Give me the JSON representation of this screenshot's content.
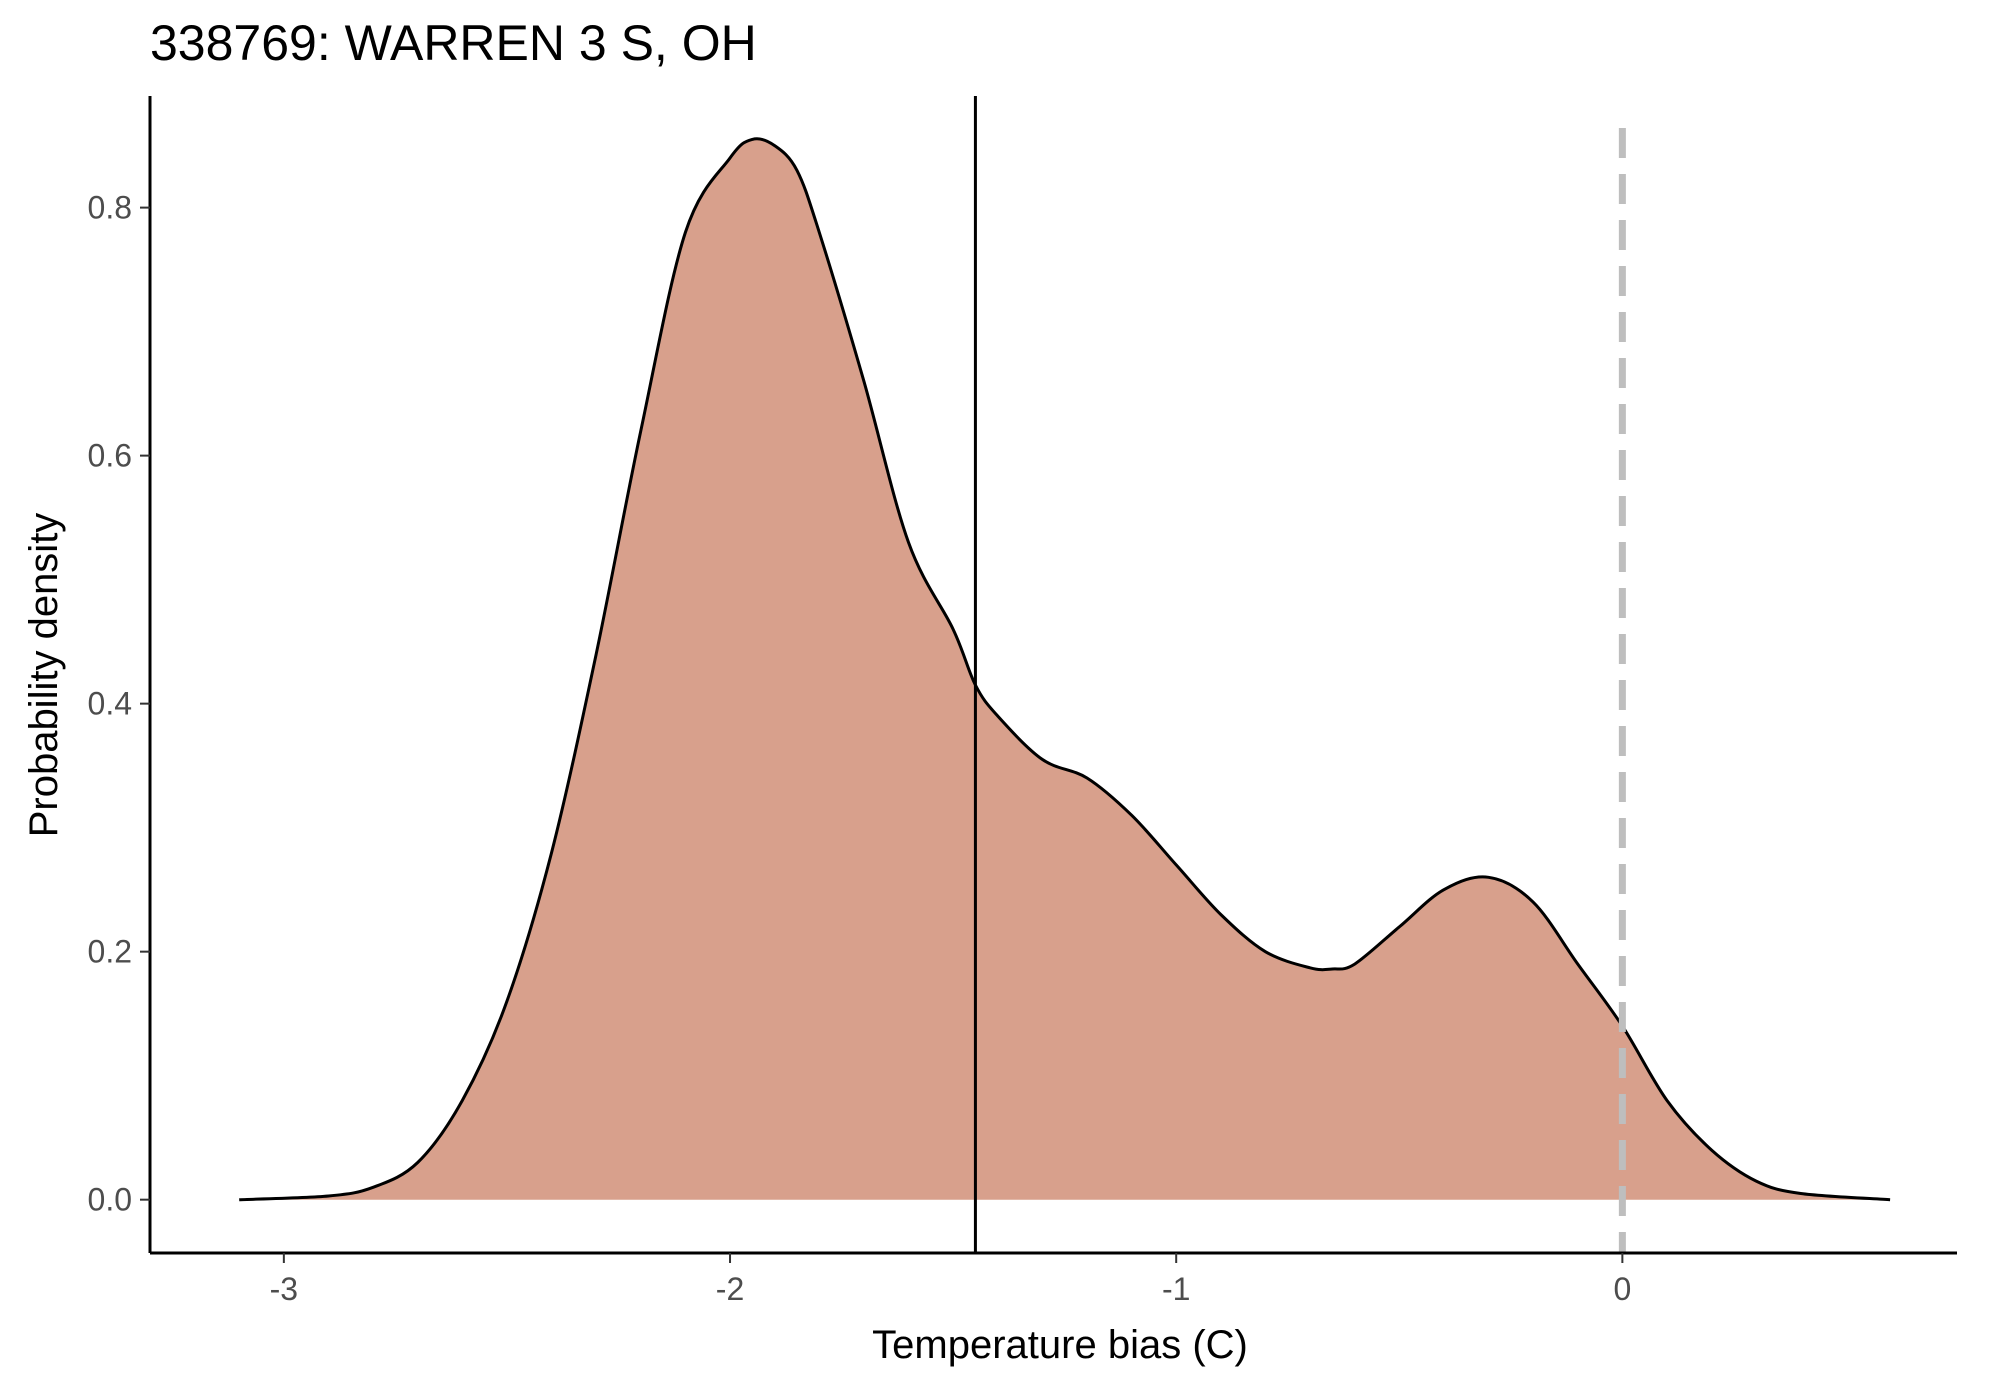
{
  "chart_data": {
    "type": "area",
    "title": "338769: WARREN 3 S, OH",
    "xlabel": "Temperature bias (C)",
    "ylabel": "Probability density",
    "xlim": [
      -3.3,
      0.75
    ],
    "ylim": [
      -0.043,
      0.89
    ],
    "x_ticks": [
      -3,
      -2,
      -1,
      0
    ],
    "x_tick_labels": [
      "-3",
      "-2",
      "-1",
      "0"
    ],
    "y_ticks": [
      0.0,
      0.2,
      0.4,
      0.6,
      0.8
    ],
    "y_tick_labels": [
      "0.0",
      "0.2",
      "0.4",
      "0.6",
      "0.8"
    ],
    "grid": false,
    "fill_color": "#d8a08c",
    "line_color": "#000000",
    "series": [
      {
        "x": [
          -3.1,
          -2.9,
          -2.8,
          -2.7,
          -2.6,
          -2.5,
          -2.4,
          -2.3,
          -2.2,
          -2.1,
          -2.0,
          -1.95,
          -1.9,
          -1.85,
          -1.8,
          -1.7,
          -1.6,
          -1.5,
          -1.45,
          -1.4,
          -1.3,
          -1.2,
          -1.1,
          -1.0,
          -0.9,
          -0.8,
          -0.7,
          -0.65,
          -0.6,
          -0.5,
          -0.4,
          -0.3,
          -0.2,
          -0.1,
          0.0,
          0.1,
          0.2,
          0.3,
          0.4,
          0.6
        ],
        "y": [
          0.0,
          0.003,
          0.01,
          0.03,
          0.08,
          0.16,
          0.28,
          0.44,
          0.62,
          0.78,
          0.84,
          0.855,
          0.85,
          0.83,
          0.78,
          0.66,
          0.53,
          0.46,
          0.415,
          0.39,
          0.355,
          0.34,
          0.31,
          0.27,
          0.23,
          0.2,
          0.187,
          0.186,
          0.19,
          0.22,
          0.25,
          0.26,
          0.24,
          0.19,
          0.14,
          0.08,
          0.04,
          0.015,
          0.005,
          0.0
        ]
      }
    ],
    "reference_lines": [
      {
        "axis": "x",
        "value": -1.45,
        "style": "solid",
        "color": "#000000"
      },
      {
        "axis": "x",
        "value": 0,
        "style": "dashed",
        "color": "#bebebe"
      }
    ]
  }
}
